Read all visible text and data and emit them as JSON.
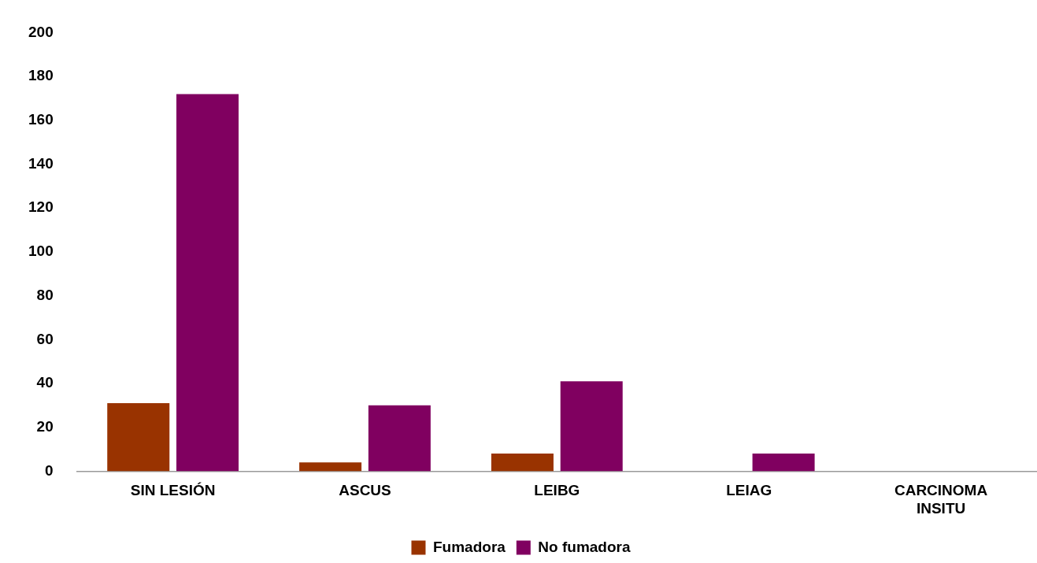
{
  "chart_data": {
    "type": "bar",
    "categories": [
      "SIN LESIÓN",
      "ASCUS",
      "LEIBG",
      "LEIAG",
      "CARCINOMA INSITU"
    ],
    "series": [
      {
        "name": "Fumadora",
        "color": "#993300",
        "values": [
          31,
          4,
          8,
          0,
          0
        ]
      },
      {
        "name": "No fumadora",
        "color": "#800060",
        "values": [
          172,
          30,
          41,
          8,
          0
        ]
      }
    ],
    "ylim": [
      0,
      200
    ],
    "yticks": [
      0,
      20,
      40,
      60,
      80,
      100,
      120,
      140,
      160,
      180,
      200
    ],
    "grid": false,
    "legend": "bottom"
  }
}
